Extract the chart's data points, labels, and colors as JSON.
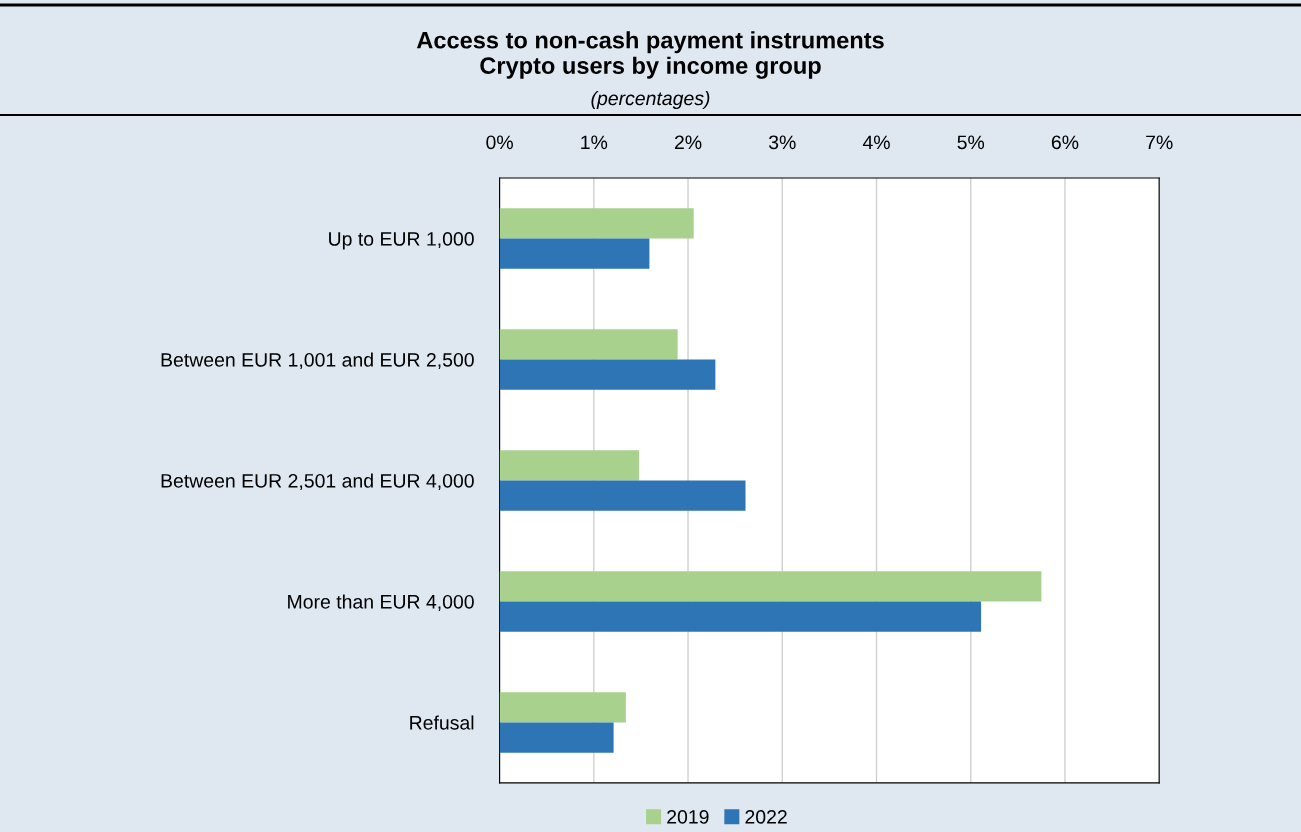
{
  "chart_data": {
    "type": "bar",
    "orientation": "horizontal",
    "title": "Access to non-cash payment instruments\nCrypto users by income group",
    "subtitle": "(percentages)",
    "categories": [
      "Up to EUR 1,000",
      "Between EUR 1,001 and EUR 2,500",
      "Between EUR 2,501 and EUR 4,000",
      "More than EUR 4,000",
      "Refusal"
    ],
    "series": [
      {
        "name": "2019",
        "color": "#a9d18e",
        "values": [
          2.06,
          1.89,
          1.48,
          5.75,
          1.34
        ]
      },
      {
        "name": "2022",
        "color": "#2e75b6",
        "values": [
          1.59,
          2.29,
          2.61,
          5.11,
          1.21
        ]
      }
    ],
    "xlim": [
      0,
      7
    ],
    "xticks": [
      {
        "value": 0,
        "label": "0%"
      },
      {
        "value": 1,
        "label": "1%"
      },
      {
        "value": 2,
        "label": "2%"
      },
      {
        "value": 3,
        "label": "3%"
      },
      {
        "value": 4,
        "label": "4%"
      },
      {
        "value": 5,
        "label": "5%"
      },
      {
        "value": 6,
        "label": "6%"
      },
      {
        "value": 7,
        "label": "7%"
      }
    ],
    "grid": "x",
    "legend": "bottom"
  }
}
